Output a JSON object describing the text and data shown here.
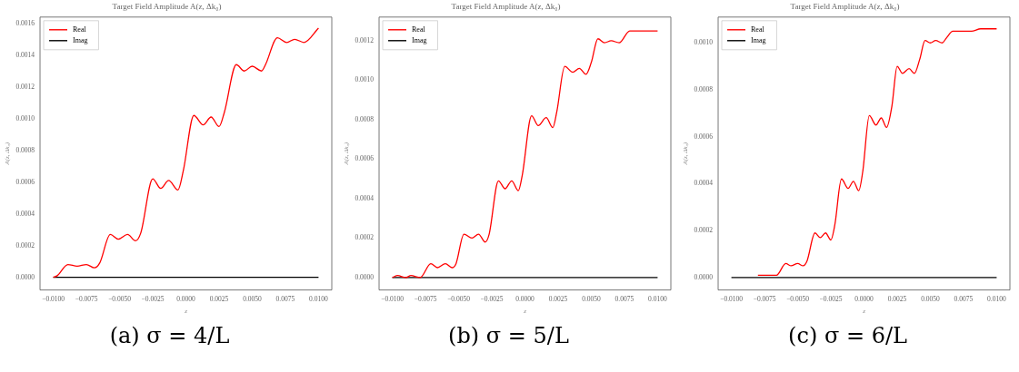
{
  "chart_data": [
    {
      "type": "line",
      "title": "Target Field Amplitude A(z, Δk₀)",
      "subtitle": "(a) σ = 4/L",
      "xlabel": "z",
      "ylabel": "A(z, Δk₀)",
      "legend": "top left",
      "grid": false,
      "marker": "none",
      "line_style": "solid",
      "xlim": [
        -0.011,
        0.011
      ],
      "xticks": [
        {
          "value": -0.01,
          "label": "−0.0100"
        },
        {
          "value": -0.0075,
          "label": "−0.0075"
        },
        {
          "value": -0.005,
          "label": "−0.0050"
        },
        {
          "value": -0.0025,
          "label": "−0.0025"
        },
        {
          "value": 0,
          "label": "0.0000"
        },
        {
          "value": 0.0025,
          "label": "0.0025"
        },
        {
          "value": 0.005,
          "label": "0.0050"
        },
        {
          "value": 0.0075,
          "label": "0.0075"
        },
        {
          "value": 0.01,
          "label": "0.0100"
        }
      ],
      "ylim": [
        -8e-05,
        0.00164
      ],
      "yticks": [
        {
          "value": 0,
          "label": "0.0000"
        },
        {
          "value": 0.0002,
          "label": "0.0002"
        },
        {
          "value": 0.0004,
          "label": "0.0004"
        },
        {
          "value": 0.0006,
          "label": "0.0006"
        },
        {
          "value": 0.0008,
          "label": "0.0008"
        },
        {
          "value": 0.001,
          "label": "0.0010"
        },
        {
          "value": 0.0012,
          "label": "0.0012"
        },
        {
          "value": 0.0014,
          "label": "0.0014"
        },
        {
          "value": 0.0016,
          "label": "0.0016"
        }
      ],
      "series": [
        {
          "name": "Real",
          "color": "#ff0000",
          "x": [
            -0.01,
            -0.0097,
            -0.0089,
            -0.0082,
            -0.0075,
            -0.0069,
            -0.0065,
            -0.0057,
            -0.0051,
            -0.0044,
            -0.0038,
            -0.0034,
            -0.0025,
            -0.0019,
            -0.0013,
            -0.0006,
            -0.0002,
            0.0006,
            0.0013,
            0.0019,
            0.0025,
            0.0029,
            0.0038,
            0.0044,
            0.005,
            0.0057,
            0.006,
            0.0069,
            0.0076,
            0.0082,
            0.0089,
            0.01
          ],
          "values": [
            0,
            1e-05,
            8e-05,
            7e-05,
            8e-05,
            6e-05,
            9e-05,
            0.00027,
            0.00024,
            0.00027,
            0.00023,
            0.00028,
            0.00062,
            0.00056,
            0.00061,
            0.00055,
            0.00067,
            0.00102,
            0.00096,
            0.00101,
            0.00095,
            0.00104,
            0.00134,
            0.0013,
            0.00133,
            0.0013,
            0.00134,
            0.00151,
            0.00148,
            0.0015,
            0.00148,
            0.00157
          ]
        },
        {
          "name": "Imag",
          "color": "#000000",
          "x": [
            -0.01,
            0.01
          ],
          "values": [
            0,
            0
          ]
        }
      ]
    },
    {
      "type": "line",
      "title": "Target Field Amplitude A(z, Δk₀)",
      "subtitle": "(b) σ = 5/L",
      "xlabel": "z",
      "ylabel": "A(z, Δk₀)",
      "legend": "top left",
      "grid": false,
      "marker": "none",
      "line_style": "solid",
      "xlim": [
        -0.011,
        0.011
      ],
      "xticks": [
        {
          "value": -0.01,
          "label": "−0.0100"
        },
        {
          "value": -0.0075,
          "label": "−0.0075"
        },
        {
          "value": -0.005,
          "label": "−0.0050"
        },
        {
          "value": -0.0025,
          "label": "−0.0025"
        },
        {
          "value": 0,
          "label": "0.0000"
        },
        {
          "value": 0.0025,
          "label": "0.0025"
        },
        {
          "value": 0.005,
          "label": "0.0050"
        },
        {
          "value": 0.0075,
          "label": "0.0075"
        },
        {
          "value": 0.01,
          "label": "0.0100"
        }
      ],
      "ylim": [
        -6.3e-05,
        0.00132
      ],
      "yticks": [
        {
          "value": 0,
          "label": "0.0000"
        },
        {
          "value": 0.0002,
          "label": "0.0002"
        },
        {
          "value": 0.0004,
          "label": "0.0004"
        },
        {
          "value": 0.0006,
          "label": "0.0006"
        },
        {
          "value": 0.0008,
          "label": "0.0008"
        },
        {
          "value": 0.001,
          "label": "0.0010"
        },
        {
          "value": 0.0012,
          "label": "0.0012"
        }
      ],
      "series": [
        {
          "name": "Real",
          "color": "#ff0000",
          "x": [
            -0.01,
            -0.0096,
            -0.009,
            -0.0086,
            -0.0079,
            -0.0071,
            -0.0066,
            -0.006,
            -0.0055,
            -0.0052,
            -0.0046,
            -0.004,
            -0.0035,
            -0.003,
            -0.0027,
            -0.002,
            -0.0015,
            -0.001,
            -0.0005,
            -0.0002,
            0.0005,
            0.001,
            0.0016,
            0.0021,
            0.0024,
            0.003,
            0.0036,
            0.0041,
            0.0046,
            0.005,
            0.0055,
            0.006,
            0.0065,
            0.0071,
            0.0079,
            0.0086,
            0.01
          ],
          "values": [
            0,
            1e-05,
            0,
            1e-05,
            0,
            7e-05,
            5e-05,
            7e-05,
            5e-05,
            7e-05,
            0.00022,
            0.0002,
            0.00022,
            0.00018,
            0.00022,
            0.00049,
            0.00045,
            0.00049,
            0.00044,
            0.00052,
            0.00082,
            0.00077,
            0.00081,
            0.00076,
            0.00084,
            0.00107,
            0.00104,
            0.00106,
            0.00103,
            0.00109,
            0.00121,
            0.00119,
            0.0012,
            0.00119,
            0.00125,
            0.00125,
            0.00125
          ]
        },
        {
          "name": "Imag",
          "color": "#000000",
          "x": [
            -0.01,
            0.01
          ],
          "values": [
            0,
            0
          ]
        }
      ]
    },
    {
      "type": "line",
      "title": "Target Field Amplitude A(z, Δk₀)",
      "subtitle": "(c) σ = 6/L",
      "xlabel": "z",
      "ylabel": "A(z, Δk₀)",
      "legend": "top left",
      "grid": false,
      "marker": "none",
      "line_style": "solid",
      "xlim": [
        -0.011,
        0.011
      ],
      "xticks": [
        {
          "value": -0.01,
          "label": "−0.0100"
        },
        {
          "value": -0.0075,
          "label": "−0.0075"
        },
        {
          "value": -0.005,
          "label": "−0.0050"
        },
        {
          "value": -0.0025,
          "label": "−0.0025"
        },
        {
          "value": 0,
          "label": "0.0000"
        },
        {
          "value": 0.0025,
          "label": "0.0025"
        },
        {
          "value": 0.005,
          "label": "0.0050"
        },
        {
          "value": 0.0075,
          "label": "0.0075"
        },
        {
          "value": 0.01,
          "label": "0.0100"
        }
      ],
      "ylim": [
        -5.3e-05,
        0.00111
      ],
      "yticks": [
        {
          "value": 0,
          "label": "0.0000"
        },
        {
          "value": 0.0002,
          "label": "0.0002"
        },
        {
          "value": 0.0004,
          "label": "0.0004"
        },
        {
          "value": 0.0006,
          "label": "0.0006"
        },
        {
          "value": 0.0008,
          "label": "0.0008"
        },
        {
          "value": 0.001,
          "label": "0.0010"
        }
      ],
      "series": [
        {
          "name": "Real",
          "color": "#ff0000",
          "x": [
            -0.008,
            -0.0075,
            -0.007,
            -0.0066,
            -0.0059,
            -0.0055,
            -0.005,
            -0.0046,
            -0.0043,
            -0.0037,
            -0.0033,
            -0.0029,
            -0.0025,
            -0.0022,
            -0.0017,
            -0.0012,
            -0.0008,
            -0.0004,
            -0.0001,
            0.0004,
            0.0009,
            0.0013,
            0.0017,
            0.0021,
            0.0025,
            0.0029,
            0.0034,
            0.0038,
            0.0042,
            0.0046,
            0.005,
            0.0054,
            0.0059,
            0.0062,
            0.0067,
            0.0073,
            0.0081,
            0.0088,
            0.01
          ],
          "values": [
            1e-05,
            1e-05,
            1e-05,
            1e-05,
            6e-05,
            5e-05,
            6e-05,
            5e-05,
            7e-05,
            0.00019,
            0.00017,
            0.00019,
            0.00016,
            0.000225,
            0.00042,
            0.00038,
            0.00041,
            0.00037,
            0.00045,
            0.00069,
            0.00065,
            0.00068,
            0.00064,
            0.00073,
            0.0009,
            0.00087,
            0.00089,
            0.00087,
            0.00093,
            0.00101,
            0.001,
            0.00101,
            0.001,
            0.00102,
            0.00105,
            0.00105,
            0.00105,
            0.00106,
            0.00106
          ]
        },
        {
          "name": "Imag",
          "color": "#000000",
          "x": [
            -0.01,
            0.01
          ],
          "values": [
            0,
            0
          ]
        }
      ]
    }
  ]
}
